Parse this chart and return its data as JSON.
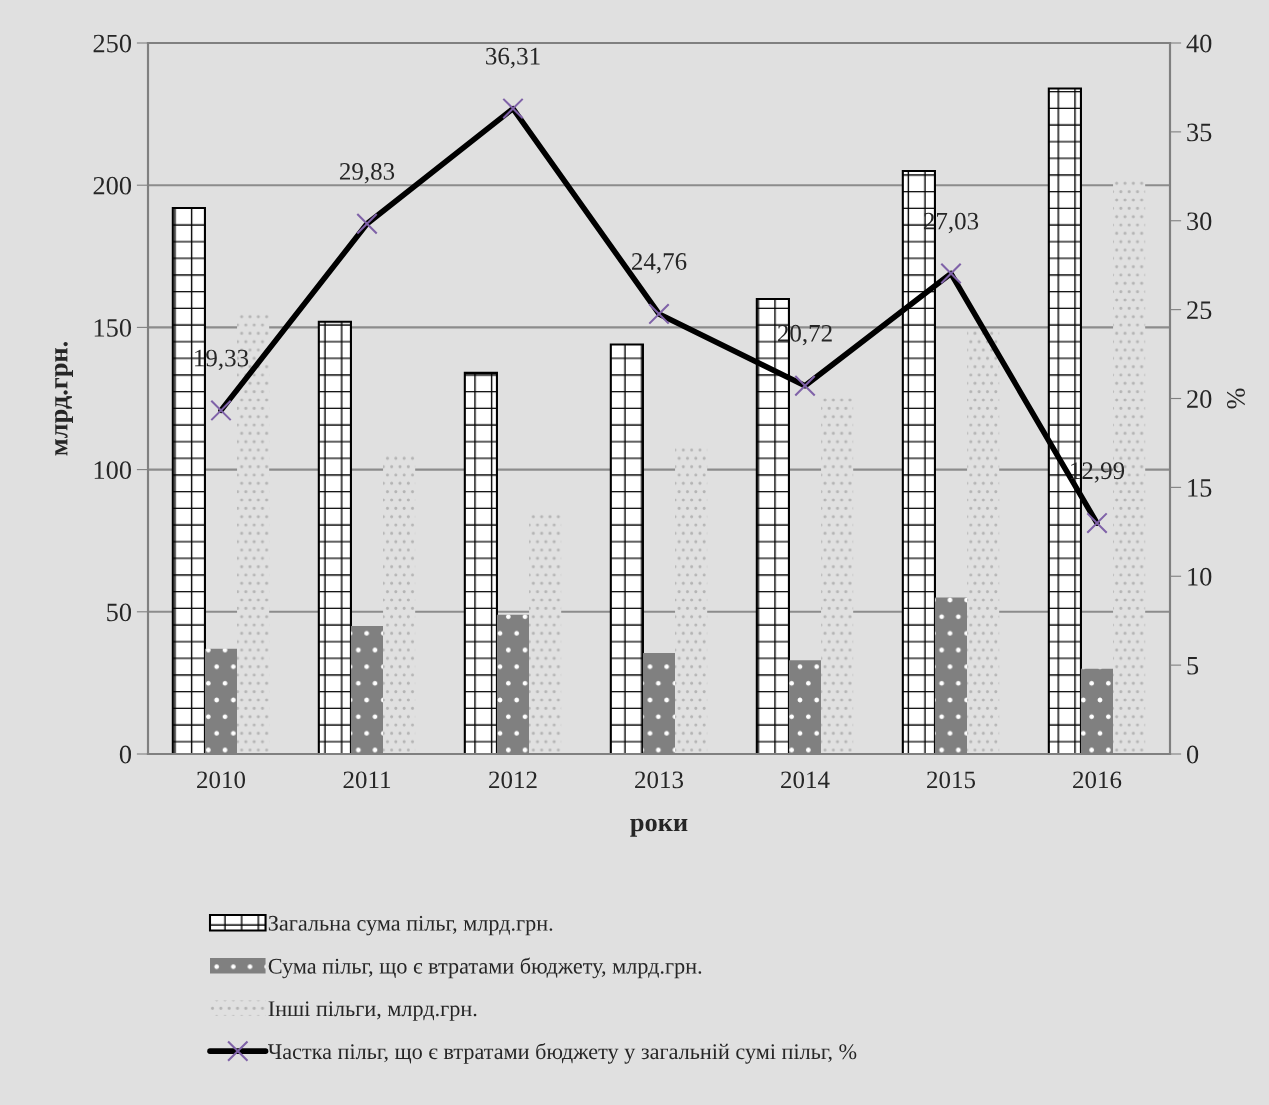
{
  "chart_data": {
    "type": "bar",
    "categories": [
      "2010",
      "2011",
      "2012",
      "2013",
      "2014",
      "2015",
      "2016"
    ],
    "xlabel": "роки",
    "ylabel": "млрд.грн.",
    "y2label": "%",
    "ylim": [
      0,
      250
    ],
    "yticks": [
      0,
      50,
      100,
      150,
      200,
      250
    ],
    "y2lim": [
      0,
      40
    ],
    "y2ticks": [
      0,
      5,
      10,
      15,
      20,
      25,
      30,
      35,
      40
    ],
    "grid": "y",
    "legend": "bottom",
    "series": [
      {
        "name": "Загальна сума пільг, млрд.грн.",
        "color": "#000000",
        "values": [
          192,
          152,
          134,
          144,
          160,
          205,
          234
        ]
      },
      {
        "name": "Сума пільг, що є втратами бюджету, млрд.грн.",
        "color": "#808080",
        "values": [
          37,
          45,
          49,
          35.5,
          33,
          55,
          30
        ]
      },
      {
        "name": "Інші пільги, млрд.грн.",
        "color": "#b4b4b4",
        "values": [
          155,
          106,
          85,
          108,
          126,
          149,
          202
        ]
      },
      {
        "name": "Частка пільг, що є втратами бюджету у загальній сумі пільг, %",
        "type": "line",
        "axis": "y2",
        "color": "#000000",
        "marker": "cross",
        "values": [
          19.33,
          29.83,
          36.31,
          24.76,
          20.72,
          27.03,
          12.99
        ],
        "value_labels": [
          "19,33",
          "29,83",
          "36,31",
          "24,76",
          "20,72",
          "27,03",
          "12,99"
        ]
      }
    ]
  }
}
